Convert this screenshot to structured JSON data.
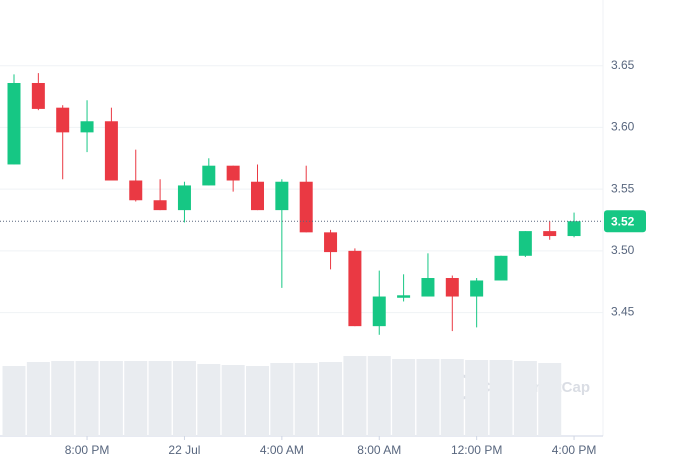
{
  "chart_data": {
    "type": "candlestick",
    "categories": [
      null,
      null,
      null,
      "8:00 PM",
      null,
      null,
      null,
      "22 Jul",
      null,
      null,
      null,
      "4:00 AM",
      null,
      null,
      null,
      "8:00 AM",
      null,
      null,
      null,
      "12:00 PM",
      null,
      null,
      null,
      "4:00 PM"
    ],
    "open": [
      3.57,
      3.636,
      3.616,
      3.596,
      3.605,
      3.557,
      3.541,
      3.533,
      3.553,
      3.569,
      3.556,
      3.533,
      3.556,
      3.515,
      3.5,
      3.439,
      3.462,
      3.463,
      3.478,
      3.463,
      3.476,
      3.496,
      3.516,
      3.512
    ],
    "high": [
      3.643,
      3.644,
      3.618,
      3.622,
      3.616,
      3.582,
      3.558,
      3.556,
      3.575,
      3.569,
      3.57,
      3.558,
      3.569,
      3.517,
      3.502,
      3.484,
      3.481,
      3.498,
      3.48,
      3.478,
      3.496,
      3.516,
      3.524,
      3.531
    ],
    "low": [
      3.57,
      3.614,
      3.558,
      3.58,
      3.557,
      3.54,
      3.533,
      3.523,
      3.553,
      3.548,
      3.533,
      3.47,
      3.515,
      3.485,
      3.439,
      3.432,
      3.459,
      3.463,
      3.435,
      3.438,
      3.476,
      3.495,
      3.509,
      3.511
    ],
    "close": [
      3.636,
      3.615,
      3.596,
      3.605,
      3.557,
      3.541,
      3.533,
      3.553,
      3.569,
      3.557,
      3.533,
      3.556,
      3.515,
      3.499,
      3.439,
      3.463,
      3.464,
      3.478,
      3.463,
      3.476,
      3.496,
      3.516,
      3.512,
      3.524
    ],
    "volume": [
      70,
      74,
      75,
      75,
      75,
      75,
      75,
      75,
      72,
      71,
      70,
      73,
      73,
      74,
      80,
      80,
      77,
      77,
      77,
      76,
      76,
      75,
      73,
      null
    ],
    "up_color": "#16c784",
    "down_color": "#ea3943",
    "volume_color": "#e9ecf0",
    "ylim": [
      3.35,
      3.7
    ],
    "yticks": [
      3.45,
      {
        "value": 3.5,
        "label": "3.50"
      },
      3.55,
      {
        "value": 3.6,
        "label": "3.60"
      },
      3.65
    ],
    "current_price": {
      "value": 3.524,
      "label": "3.52"
    },
    "watermark": "CoinMarketCap",
    "grid": true
  }
}
